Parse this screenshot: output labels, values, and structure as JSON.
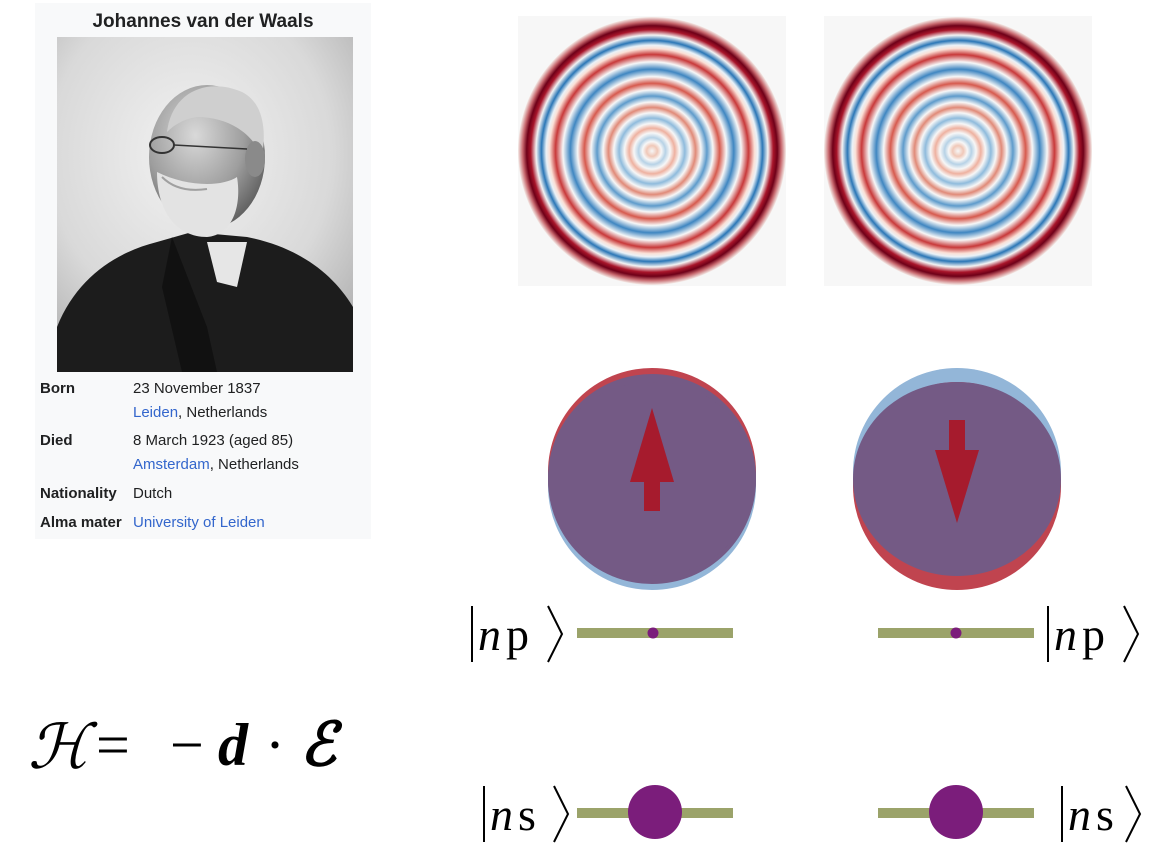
{
  "infobox": {
    "title": "Johannes van der Waals",
    "rows": [
      {
        "label": "Born",
        "line1": "23 November 1837",
        "line2_link": "Leiden",
        "line2_rest": ", Netherlands"
      },
      {
        "label": "Died",
        "line1": "8 March 1923 (aged 85)",
        "line2_link": "Amsterdam",
        "line2_rest": ", Netherlands"
      },
      {
        "label": "Nationality",
        "value": "Dutch"
      },
      {
        "label": "Alma mater",
        "value_link": "University of Leiden"
      }
    ]
  },
  "hamiltonian": {
    "lhs": "ℋ",
    "eq": "=",
    "minus": "−",
    "d": "d",
    "dot": "·",
    "field": "ℰ"
  },
  "kets": {
    "np_left": {
      "state": "n",
      "orbital": "p"
    },
    "np_right": {
      "state": "n",
      "orbital": "p"
    },
    "ns_left": {
      "state": "n",
      "orbital": "s"
    },
    "ns_right": {
      "state": "n",
      "orbital": "s"
    }
  },
  "colors": {
    "ring_red": "#7a0018",
    "ring_blue": "#2f6db4",
    "lobe_red": "#c0444f",
    "lobe_blue": "#93b6d8",
    "overlap": "#745a85",
    "arrow": "#a61b2d",
    "level_bar": "#9ba36a",
    "dot": "#7b1d7b",
    "link": "#3366cc"
  }
}
